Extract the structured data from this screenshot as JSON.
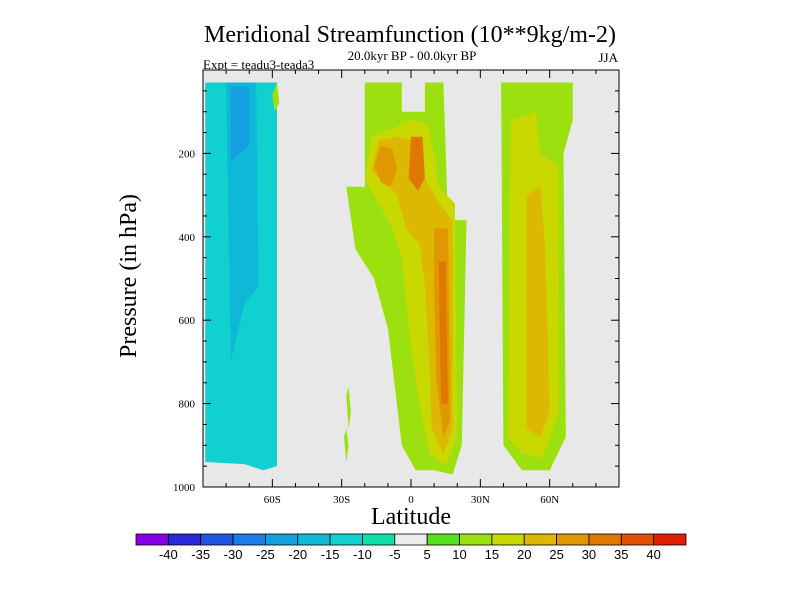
{
  "chart_data": {
    "type": "heatmap",
    "title": "Meridional Streamfunction (10**9kg/m-2)",
    "subtitle": "20.0kyr BP - 00.0kyr BP",
    "experiment": "Expt = teadu3-teada3",
    "season": "JJA",
    "xlabel": "Latitude",
    "ylabel": "Pressure (in hPa)",
    "xlim": [
      -90,
      90
    ],
    "ylim": [
      1000,
      0
    ],
    "x_ticks": [
      -60,
      -30,
      0,
      30,
      60
    ],
    "x_tick_labels": [
      "60S",
      "30S",
      "0",
      "30N",
      "60N"
    ],
    "y_ticks": [
      200,
      400,
      600,
      800,
      1000
    ],
    "y_tick_labels": [
      "200",
      "400",
      "600",
      "800",
      "1000"
    ],
    "colorbar": {
      "labels": [
        "-40",
        "-35",
        "-30",
        "-25",
        "-20",
        "-15",
        "-10",
        "-5",
        "5",
        "10",
        "15",
        "20",
        "25",
        "30",
        "35",
        "40"
      ],
      "colors": [
        "#8a00e6",
        "#2a28d8",
        "#1f55e0",
        "#1d7de8",
        "#14a0e0",
        "#10b8d8",
        "#10d0d0",
        "#10dfa8",
        "#ececec",
        "#55e020",
        "#9ce010",
        "#c8d800",
        "#ddb800",
        "#e09800",
        "#e07800",
        "#e05000",
        "#e02000"
      ]
    },
    "regions": [
      {
        "name": "neg-band-south-outer",
        "value": -15,
        "points": [
          [
            -89,
            940
          ],
          [
            -89,
            30
          ],
          [
            -58,
            30
          ],
          [
            -58,
            950
          ],
          [
            -64,
            960
          ],
          [
            -72,
            945
          ]
        ]
      },
      {
        "name": "neg-band-south-inner",
        "value": -20,
        "points": [
          [
            -78,
            700
          ],
          [
            -80,
            30
          ],
          [
            -67,
            30
          ],
          [
            -66,
            520
          ],
          [
            -72,
            560
          ]
        ]
      },
      {
        "name": "neg-band-south-core",
        "value": -25,
        "points": [
          [
            -78,
            220
          ],
          [
            -78,
            40
          ],
          [
            -70,
            40
          ],
          [
            -70,
            180
          ]
        ]
      },
      {
        "name": "neg-patch-equator",
        "value": -15,
        "points": [
          [
            -10,
            460
          ],
          [
            -7,
            350
          ],
          [
            -3,
            330
          ],
          [
            -2,
            520
          ],
          [
            -8,
            560
          ]
        ]
      },
      {
        "name": "pos-tropic-outer",
        "value": 10,
        "points": [
          [
            -20,
            280
          ],
          [
            -20,
            30
          ],
          [
            -4,
            30
          ],
          [
            -4,
            100
          ],
          [
            6,
            100
          ],
          [
            6,
            30
          ],
          [
            14,
            30
          ],
          [
            16,
            360
          ],
          [
            24,
            360
          ],
          [
            22,
            900
          ],
          [
            18,
            970
          ],
          [
            10,
            960
          ],
          [
            2,
            960
          ],
          [
            -4,
            900
          ],
          [
            -10,
            620
          ],
          [
            -16,
            500
          ],
          [
            -24,
            430
          ],
          [
            -28,
            280
          ]
        ]
      },
      {
        "name": "pos-tropic-mid",
        "value": 15,
        "points": [
          [
            -20,
            260
          ],
          [
            -17,
            160
          ],
          [
            -8,
            140
          ],
          [
            0,
            120
          ],
          [
            7,
            130
          ],
          [
            10,
            200
          ],
          [
            12,
            280
          ],
          [
            19,
            320
          ],
          [
            20,
            880
          ],
          [
            15,
            950
          ],
          [
            8,
            920
          ],
          [
            3,
            780
          ],
          [
            -1,
            620
          ],
          [
            -4,
            450
          ],
          [
            -8,
            380
          ],
          [
            -13,
            330
          ]
        ]
      },
      {
        "name": "pos-tropic-inner",
        "value": 20,
        "points": [
          [
            -17,
            240
          ],
          [
            -14,
            170
          ],
          [
            -6,
            160
          ],
          [
            2,
            170
          ],
          [
            6,
            260
          ],
          [
            12,
            320
          ],
          [
            18,
            360
          ],
          [
            18,
            860
          ],
          [
            14,
            920
          ],
          [
            9,
            860
          ],
          [
            8,
            700
          ],
          [
            6,
            520
          ],
          [
            4,
            420
          ],
          [
            -2,
            380
          ],
          [
            -6,
            300
          ]
        ]
      },
      {
        "name": "pos-tropic-core-north",
        "value": 25,
        "points": [
          [
            10,
            380
          ],
          [
            16,
            380
          ],
          [
            17,
            840
          ],
          [
            14,
            880
          ],
          [
            11,
            740
          ],
          [
            10,
            520
          ]
        ]
      },
      {
        "name": "pos-tropic-core-upper",
        "value": 25,
        "points": [
          [
            -16,
            230
          ],
          [
            -13,
            180
          ],
          [
            -8,
            190
          ],
          [
            -6,
            240
          ],
          [
            -9,
            280
          ],
          [
            -13,
            270
          ]
        ]
      },
      {
        "name": "pos-tropic-peak-upper",
        "value": 30,
        "points": [
          [
            -1,
            260
          ],
          [
            0,
            160
          ],
          [
            5,
            160
          ],
          [
            6,
            260
          ],
          [
            3,
            290
          ]
        ]
      },
      {
        "name": "pos-tropic-peak-north",
        "value": 30,
        "points": [
          [
            12,
            460
          ],
          [
            15,
            460
          ],
          [
            16,
            800
          ],
          [
            13,
            800
          ]
        ]
      },
      {
        "name": "pos-ne-outer",
        "value": 10,
        "points": [
          [
            40,
            900
          ],
          [
            39,
            30
          ],
          [
            70,
            30
          ],
          [
            70,
            120
          ],
          [
            66,
            200
          ],
          [
            67,
            880
          ],
          [
            60,
            960
          ],
          [
            48,
            960
          ]
        ]
      },
      {
        "name": "pos-ne-inner",
        "value": 15,
        "points": [
          [
            42,
            880
          ],
          [
            43,
            120
          ],
          [
            54,
            100
          ],
          [
            56,
            200
          ],
          [
            64,
            230
          ],
          [
            64,
            820
          ],
          [
            57,
            930
          ],
          [
            48,
            920
          ]
        ]
      },
      {
        "name": "pos-ne-core",
        "value": 20,
        "points": [
          [
            50,
            860
          ],
          [
            50,
            300
          ],
          [
            56,
            280
          ],
          [
            58,
            420
          ],
          [
            60,
            820
          ],
          [
            56,
            880
          ]
        ]
      },
      {
        "name": "pos-neg-sliver",
        "value": 10,
        "points": [
          [
            -28,
            780
          ],
          [
            -27,
            760
          ],
          [
            -26,
            820
          ],
          [
            -27,
            860
          ]
        ]
      },
      {
        "name": "pos-high-lat-south-sliver",
        "value": 10,
        "points": [
          [
            -60,
            60
          ],
          [
            -58,
            30
          ],
          [
            -57,
            80
          ],
          [
            -59,
            100
          ]
        ]
      },
      {
        "name": "pos-south-lower-east",
        "value": 10,
        "points": [
          [
            -29,
            880
          ],
          [
            -28,
            860
          ],
          [
            -27,
            900
          ],
          [
            -28,
            940
          ]
        ]
      }
    ]
  }
}
